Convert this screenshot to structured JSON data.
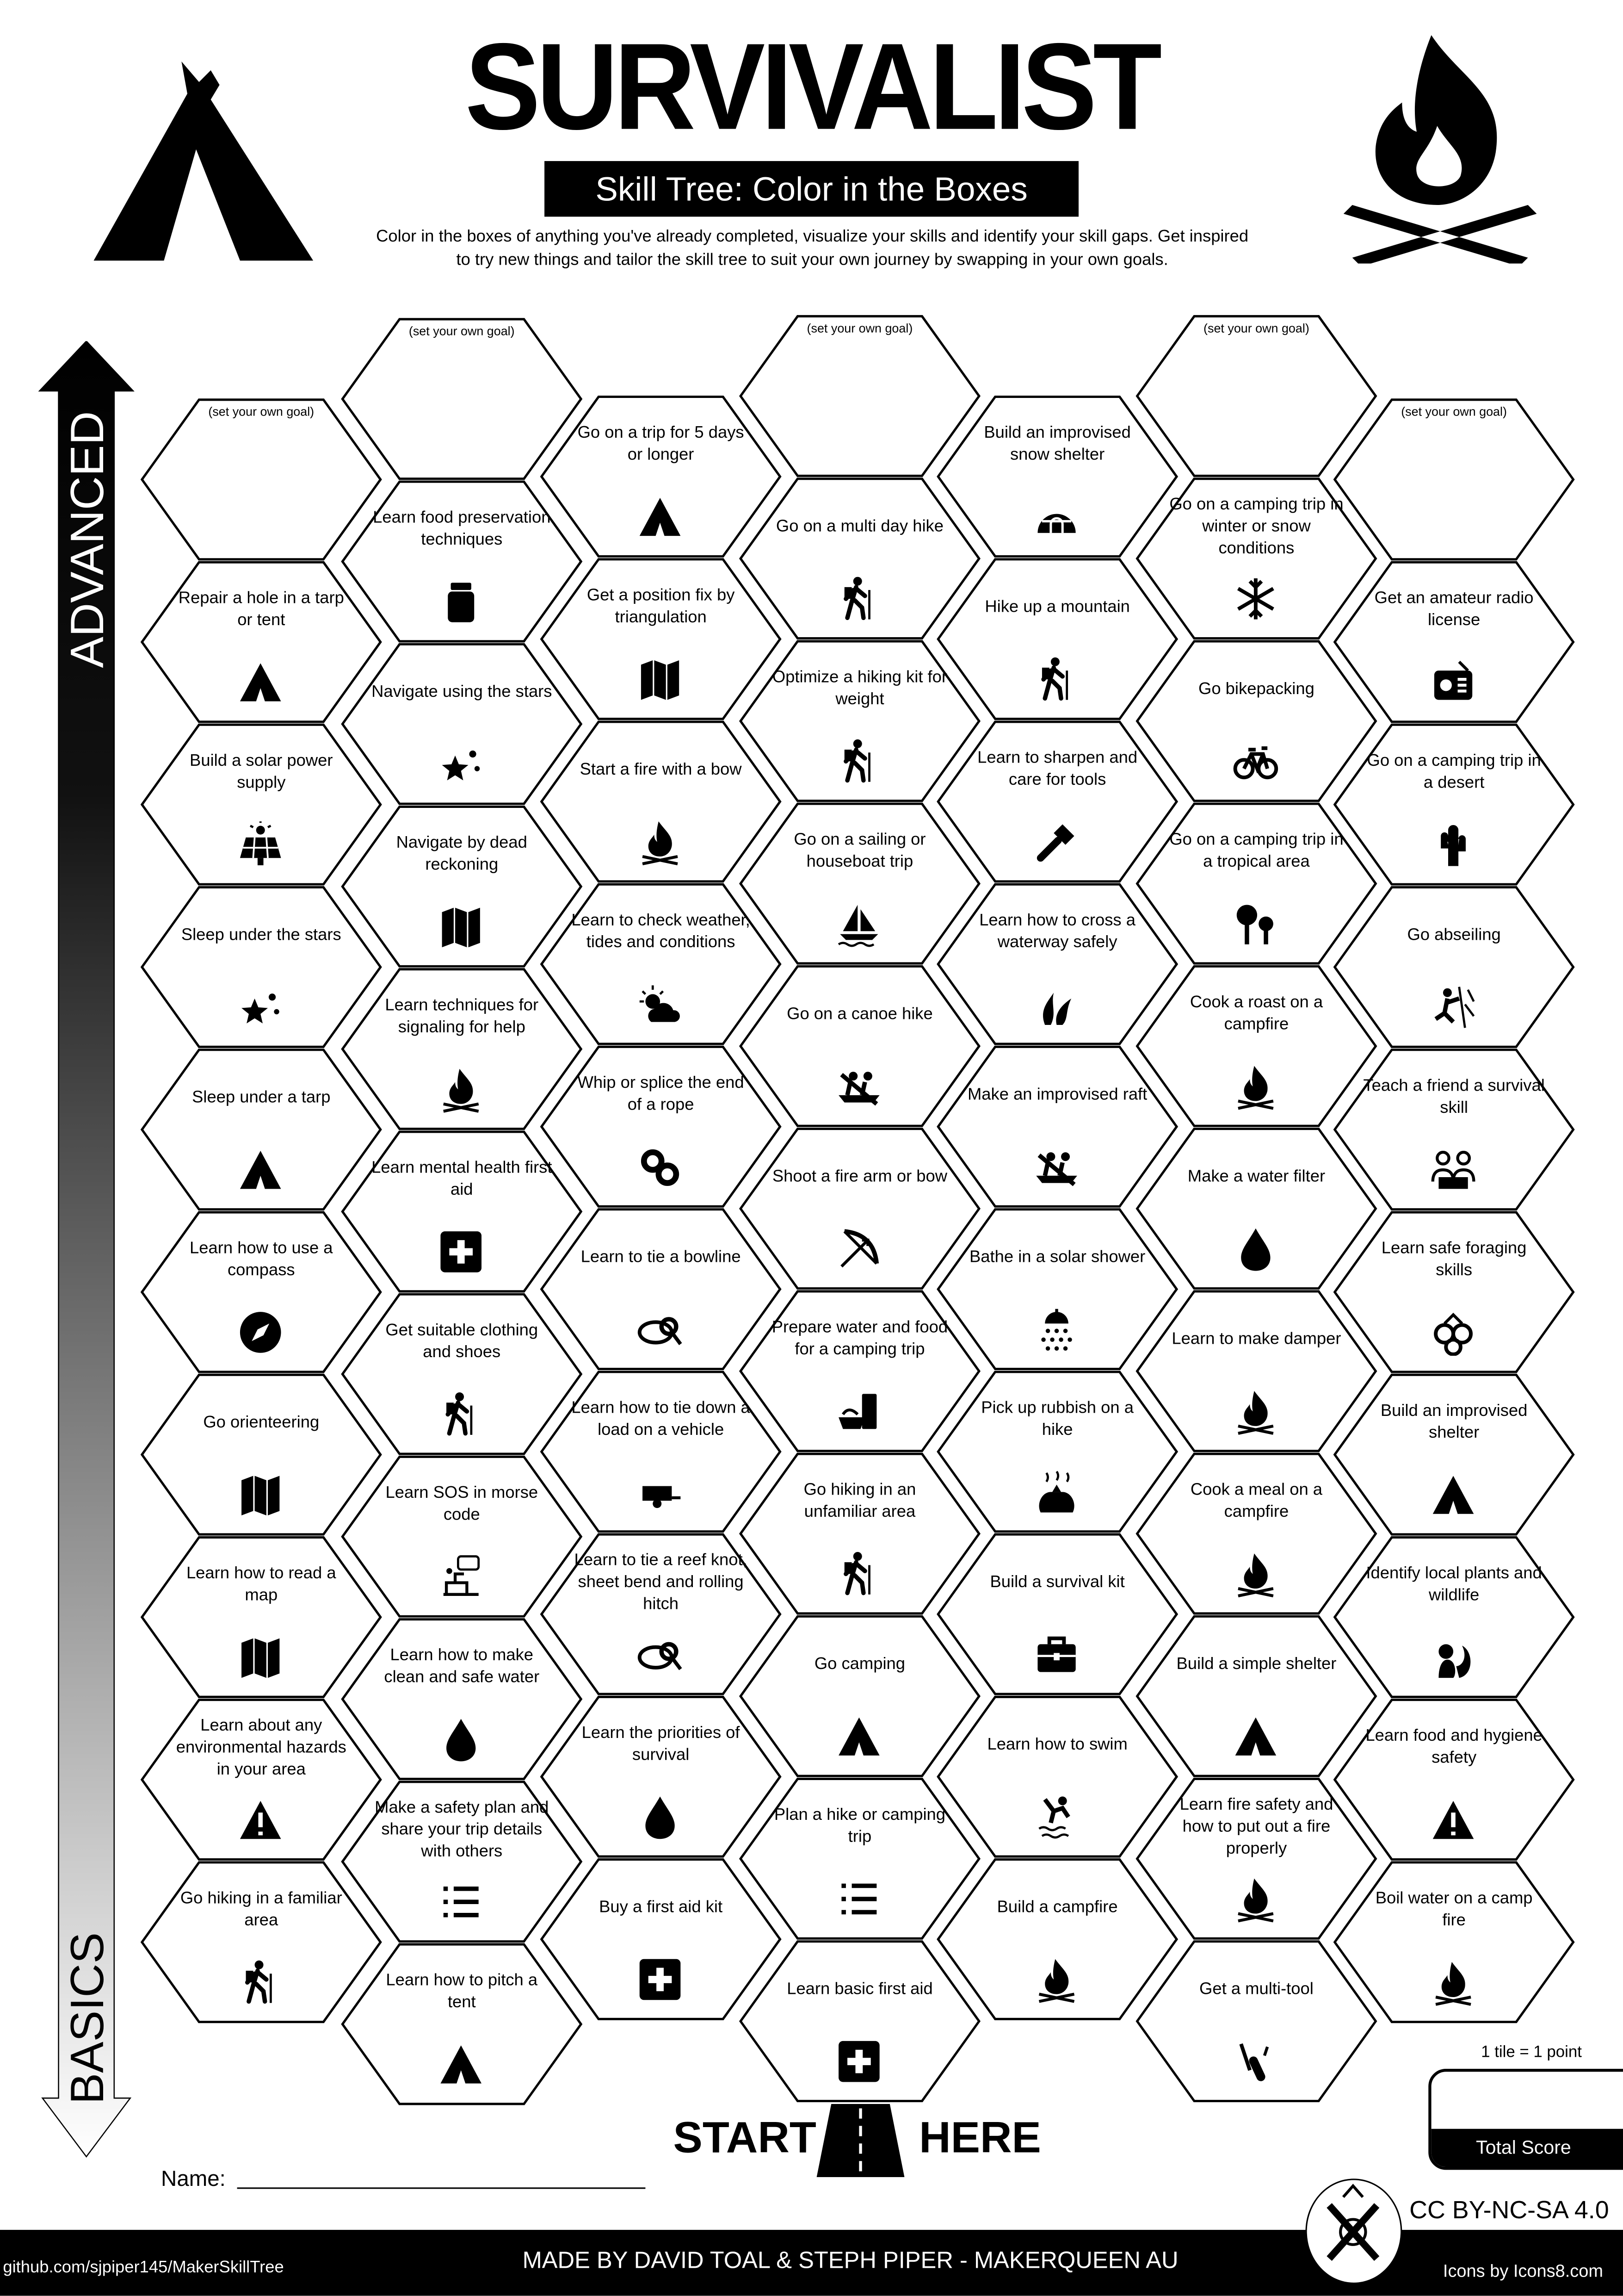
{
  "header": {
    "title": "SURVIVALIST",
    "subtitle": "Skill Tree: Color in the Boxes",
    "description_line1": "Color in the boxes of anything you've already completed, visualize your skills and identify your skill gaps.  Get inspired",
    "description_line2": "to try new things and tailor the skill tree to suit your own journey by swapping in your own goals.",
    "left_icon": "tent-icon",
    "right_icon": "campfire-icon"
  },
  "axis": {
    "top_label": "ADVANCED",
    "bottom_label": "BASICS"
  },
  "goal_placeholder": "(set your own goal)",
  "columns": [
    [
      {
        "text": "",
        "goal": true
      },
      {
        "text": "Repair a hole in a tarp or tent",
        "icon": "tent"
      },
      {
        "text": "Build a solar power supply",
        "icon": "solar-panel"
      },
      {
        "text": "Sleep under the stars",
        "icon": "stars"
      },
      {
        "text": "Sleep under a tarp",
        "icon": "tent"
      },
      {
        "text": "Learn how to use a compass",
        "icon": "compass"
      },
      {
        "text": "Go orienteering",
        "icon": "map"
      },
      {
        "text": "Learn how to read a map",
        "icon": "map"
      },
      {
        "text": "Learn about any environmental hazards in your area",
        "icon": "warning"
      },
      {
        "text": "Go hiking in a familiar area",
        "icon": "hiker"
      }
    ],
    [
      {
        "text": "",
        "goal": true
      },
      {
        "text": "Learn food preservation techniques",
        "icon": "jar"
      },
      {
        "text": "Navigate using the stars",
        "icon": "stars"
      },
      {
        "text": "Navigate by dead reckoning",
        "icon": "map"
      },
      {
        "text": "Learn techniques for signaling for help",
        "icon": "fire"
      },
      {
        "text": "Learn mental health first aid",
        "icon": "first-aid"
      },
      {
        "text": "Get suitable clothing and shoes",
        "icon": "hiker"
      },
      {
        "text": "Learn SOS in morse code",
        "icon": "morse"
      },
      {
        "text": "Learn how to make clean and safe water",
        "icon": "drop"
      },
      {
        "text": "Make a safety plan and share your trip details with others",
        "icon": "list"
      },
      {
        "text": "Learn how to pitch a tent",
        "icon": "tent"
      }
    ],
    [
      {
        "text": "Go on a trip for 5 days or longer",
        "icon": "tent"
      },
      {
        "text": "Get a position fix by triangulation",
        "icon": "map"
      },
      {
        "text": "Start a fire with a bow",
        "icon": "fire"
      },
      {
        "text": "Learn to check weather, tides and conditions",
        "icon": "weather"
      },
      {
        "text": "Whip or splice the end of a rope",
        "icon": "rope"
      },
      {
        "text": "Learn to tie a bowline",
        "icon": "knot"
      },
      {
        "text": "Learn how to tie down a load on a vehicle",
        "icon": "trailer"
      },
      {
        "text": "Learn to tie a reef knot, sheet bend and rolling hitch",
        "icon": "knot"
      },
      {
        "text": "Learn the priorities of survival",
        "icon": "drop"
      },
      {
        "text": "Buy a first aid kit",
        "icon": "first-aid"
      }
    ],
    [
      {
        "text": "",
        "goal": true
      },
      {
        "text": "Go on a multi day hike",
        "icon": "hiker"
      },
      {
        "text": "Optimize a hiking kit for weight",
        "icon": "hiker"
      },
      {
        "text": "Go on a sailing or houseboat trip",
        "icon": "sailboat"
      },
      {
        "text": "Go on a canoe hike",
        "icon": "canoe"
      },
      {
        "text": "Shoot a fire arm or bow",
        "icon": "bow"
      },
      {
        "text": "Prepare water and food for a camping trip",
        "icon": "food"
      },
      {
        "text": "Go hiking in an unfamiliar area",
        "icon": "hiker"
      },
      {
        "text": "Go camping",
        "icon": "tent"
      },
      {
        "text": "Plan a hike or camping trip",
        "icon": "list"
      },
      {
        "text": "Learn basic first aid",
        "icon": "first-aid"
      }
    ],
    [
      {
        "text": "Build an improvised snow shelter",
        "icon": "igloo"
      },
      {
        "text": "Hike up a mountain",
        "icon": "hiker"
      },
      {
        "text": "Learn to sharpen and care for tools",
        "icon": "axe"
      },
      {
        "text": "Learn how to cross a waterway safely",
        "icon": "reeds"
      },
      {
        "text": "Make an improvised raft",
        "icon": "canoe"
      },
      {
        "text": "Bathe in a solar shower",
        "icon": "shower"
      },
      {
        "text": "Pick up rubbish on a hike",
        "icon": "rubbish"
      },
      {
        "text": "Build a survival kit",
        "icon": "toolbox"
      },
      {
        "text": "Learn how to swim",
        "icon": "swimmer"
      },
      {
        "text": "Build a campfire",
        "icon": "fire"
      }
    ],
    [
      {
        "text": "",
        "goal": true
      },
      {
        "text": "Go on a camping trip in winter or snow conditions",
        "icon": "snowflake"
      },
      {
        "text": "Go bikepacking",
        "icon": "bicycle"
      },
      {
        "text": "Go on a camping trip in a tropical area",
        "icon": "trees"
      },
      {
        "text": "Cook a roast on a campfire",
        "icon": "fire"
      },
      {
        "text": "Make a water filter",
        "icon": "drop"
      },
      {
        "text": "Learn to make damper",
        "icon": "fire"
      },
      {
        "text": "Cook a meal on a campfire",
        "icon": "fire"
      },
      {
        "text": "Build a simple shelter",
        "icon": "tent"
      },
      {
        "text": "Learn fire safety and how to put out a fire properly",
        "icon": "fire"
      },
      {
        "text": "Get a multi-tool",
        "icon": "multitool"
      }
    ],
    [
      {
        "text": "",
        "goal": true
      },
      {
        "text": "Get an amateur radio license",
        "icon": "radio"
      },
      {
        "text": "Go on a camping trip in a desert",
        "icon": "cactus"
      },
      {
        "text": "Go abseiling",
        "icon": "climber"
      },
      {
        "text": "Teach a friend a survival skill",
        "icon": "teacher"
      },
      {
        "text": "Learn safe foraging skills",
        "icon": "berries"
      },
      {
        "text": "Build an improvised shelter",
        "icon": "tent"
      },
      {
        "text": "Identify local plants and wildlife",
        "icon": "squirrel"
      },
      {
        "text": "Learn food and hygiene safety",
        "icon": "warning"
      },
      {
        "text": "Boil water on a camp fire",
        "icon": "fire"
      }
    ]
  ],
  "start": {
    "left": "START",
    "right": "HERE",
    "icon": "road-icon"
  },
  "name_label": "Name:",
  "score": {
    "rule": "1 tile = 1 point",
    "label": "Total Score"
  },
  "license": "CC BY-NC-SA 4.0",
  "footer": {
    "github": "github.com/sjpiper145/MakerSkillTree",
    "made_by": "MADE BY DAVID TOAL & STEPH PIPER  -  MAKERQUEEN AU",
    "icons_credit": "Icons by Icons8.com"
  }
}
